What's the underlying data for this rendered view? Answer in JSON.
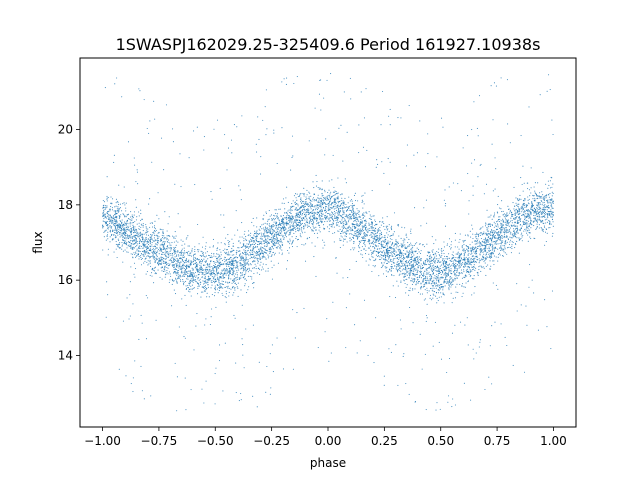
{
  "chart_data": {
    "type": "scatter",
    "title": "1SWASPJ162029.25-325409.6 Period 161927.10938s",
    "xlabel": "phase",
    "ylabel": "flux",
    "xlim": [
      -1.1,
      1.1
    ],
    "ylim": [
      12.1,
      21.9
    ],
    "x_ticks": [
      -1.0,
      -0.75,
      -0.5,
      -0.25,
      0.0,
      0.25,
      0.5,
      0.75,
      1.0
    ],
    "x_tick_labels": [
      "−1.00",
      "−0.75",
      "−0.50",
      "−0.25",
      "0.00",
      "0.25",
      "0.50",
      "0.75",
      "1.00"
    ],
    "y_ticks": [
      14,
      16,
      18,
      20
    ],
    "y_tick_labels": [
      "14",
      "16",
      "18",
      "20"
    ],
    "grid": false,
    "legend": "none",
    "marker_color": "#1f77b4",
    "series": [
      {
        "phase_range": [
          -1.0,
          1.0
        ],
        "trend_x": [
          -1.0,
          -0.9,
          -0.8,
          -0.7,
          -0.6,
          -0.5,
          -0.4,
          -0.3,
          -0.2,
          -0.1,
          0.0,
          0.1,
          0.2,
          0.3,
          0.4,
          0.5,
          0.6,
          0.7,
          0.8,
          0.9,
          1.0
        ],
        "trend_y": [
          17.7,
          17.3,
          16.9,
          16.6,
          16.3,
          16.15,
          16.4,
          16.9,
          17.4,
          17.8,
          17.9,
          17.6,
          17.1,
          16.7,
          16.3,
          16.15,
          16.45,
          16.95,
          17.4,
          17.8,
          17.9
        ]
      }
    ]
  }
}
